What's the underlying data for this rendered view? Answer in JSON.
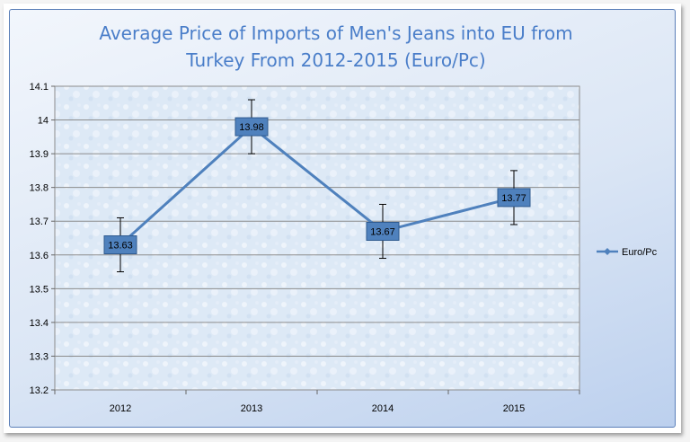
{
  "chart_data": {
    "type": "line",
    "title_lines": [
      "Average Price of Imports of Men's Jeans into EU from",
      "Turkey From 2012-2015 (Euro/Pc)"
    ],
    "categories": [
      "2012",
      "2013",
      "2014",
      "2015"
    ],
    "series": [
      {
        "name": "Euro/Pc",
        "values": [
          13.63,
          13.98,
          13.67,
          13.77
        ],
        "data_labels": [
          "13.63",
          "13.98",
          "13.67",
          "13.77"
        ],
        "error_bars": [
          0.08,
          0.08,
          0.08,
          0.08
        ],
        "color": "#4f81bd"
      }
    ],
    "ylim": [
      13.2,
      14.1
    ],
    "yticks": [
      "13.2",
      "13.3",
      "13.4",
      "13.5",
      "13.6",
      "13.7",
      "13.8",
      "13.9",
      "14",
      "14.1"
    ],
    "xlabel": "",
    "ylabel": "",
    "grid": true,
    "legend_position": "right",
    "colors": {
      "title": "#4a7ec9",
      "line": "#4f81bd",
      "label_box": "#4f81bd",
      "gridline": "#8c8c8c"
    }
  }
}
